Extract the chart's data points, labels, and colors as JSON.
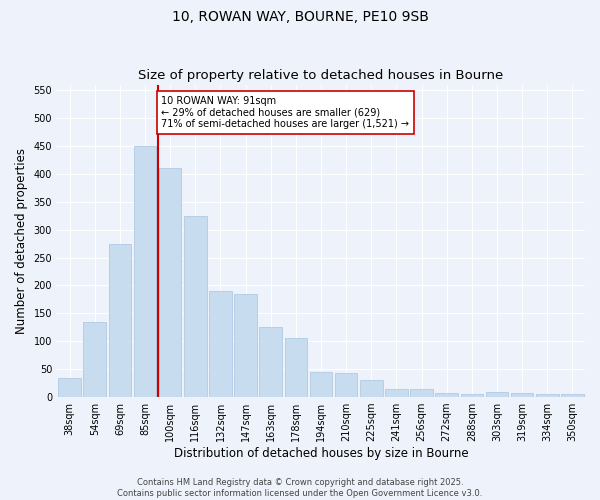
{
  "title1": "10, ROWAN WAY, BOURNE, PE10 9SB",
  "title2": "Size of property relative to detached houses in Bourne",
  "xlabel": "Distribution of detached houses by size in Bourne",
  "ylabel": "Number of detached properties",
  "categories": [
    "38sqm",
    "54sqm",
    "69sqm",
    "85sqm",
    "100sqm",
    "116sqm",
    "132sqm",
    "147sqm",
    "163sqm",
    "178sqm",
    "194sqm",
    "210sqm",
    "225sqm",
    "241sqm",
    "256sqm",
    "272sqm",
    "288sqm",
    "303sqm",
    "319sqm",
    "334sqm",
    "350sqm"
  ],
  "values": [
    35,
    135,
    275,
    450,
    410,
    325,
    190,
    185,
    125,
    105,
    45,
    43,
    30,
    15,
    15,
    7,
    5,
    10,
    7,
    5,
    5
  ],
  "bar_color": "#c8dcf0",
  "bar_edge_color": "#a8c4e0",
  "vline_x": 3.5,
  "vline_color": "#cc0000",
  "annotation_text": "10 ROWAN WAY: 91sqm\n← 29% of detached houses are smaller (629)\n71% of semi-detached houses are larger (1,521) →",
  "annotation_box_facecolor": "#ffffff",
  "annotation_box_edgecolor": "#cc0000",
  "ylim": [
    0,
    560
  ],
  "yticks": [
    0,
    50,
    100,
    150,
    200,
    250,
    300,
    350,
    400,
    450,
    500,
    550
  ],
  "background_color": "#eef2fa",
  "plot_background": "#eef2fa",
  "footer_text": "Contains HM Land Registry data © Crown copyright and database right 2025.\nContains public sector information licensed under the Open Government Licence v3.0.",
  "title_fontsize": 10,
  "subtitle_fontsize": 9.5,
  "axis_label_fontsize": 8.5,
  "tick_fontsize": 7,
  "annotation_fontsize": 7,
  "footer_fontsize": 6
}
